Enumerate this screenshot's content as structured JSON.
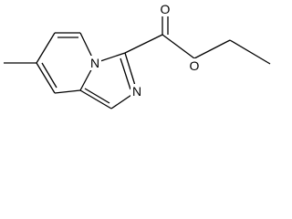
{
  "atoms": {
    "n_ring": "N",
    "n_imidazole": "N",
    "o_carbonyl": "O",
    "o_ester": "O"
  }
}
